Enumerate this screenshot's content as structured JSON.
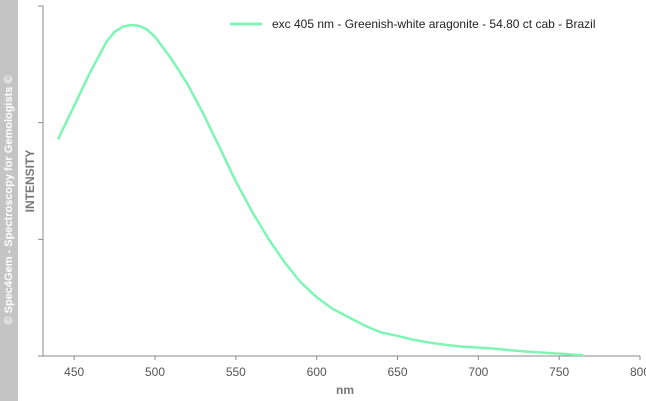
{
  "sidebar": {
    "watermark": "© Spec4Gem - Spectroscopy for Gemologists ©"
  },
  "chart_data": {
    "type": "line",
    "title": "",
    "xlabel": "nm",
    "ylabel": "INTENSITY",
    "xlim": [
      440,
      800
    ],
    "ylim": [
      0,
      1
    ],
    "x_ticks": [
      450,
      500,
      550,
      600,
      650,
      700,
      750,
      800
    ],
    "x_tick_labels": [
      "450",
      "500",
      "550",
      "600",
      "650",
      "700",
      "750",
      "800"
    ],
    "y_tick_labels_shown": false,
    "grid": false,
    "legend_position": "top-right",
    "series": [
      {
        "name": "exc 405 nm - Greenish-white aragonite - 54.80 ct cab - Brazil",
        "color": "#7ff5b4",
        "x": [
          440,
          450,
          460,
          470,
          475,
          480,
          485,
          490,
          495,
          500,
          510,
          520,
          530,
          540,
          550,
          560,
          570,
          580,
          590,
          600,
          610,
          620,
          630,
          640,
          650,
          660,
          670,
          680,
          690,
          700,
          710,
          720,
          730,
          740,
          750,
          760,
          765
        ],
        "y": [
          0.645,
          0.745,
          0.845,
          0.935,
          0.965,
          0.98,
          0.985,
          0.983,
          0.972,
          0.95,
          0.885,
          0.81,
          0.72,
          0.62,
          0.52,
          0.43,
          0.35,
          0.28,
          0.22,
          0.175,
          0.14,
          0.115,
          0.09,
          0.07,
          0.06,
          0.048,
          0.04,
          0.033,
          0.028,
          0.025,
          0.022,
          0.017,
          0.013,
          0.01,
          0.007,
          0.004,
          0.003
        ]
      }
    ]
  }
}
